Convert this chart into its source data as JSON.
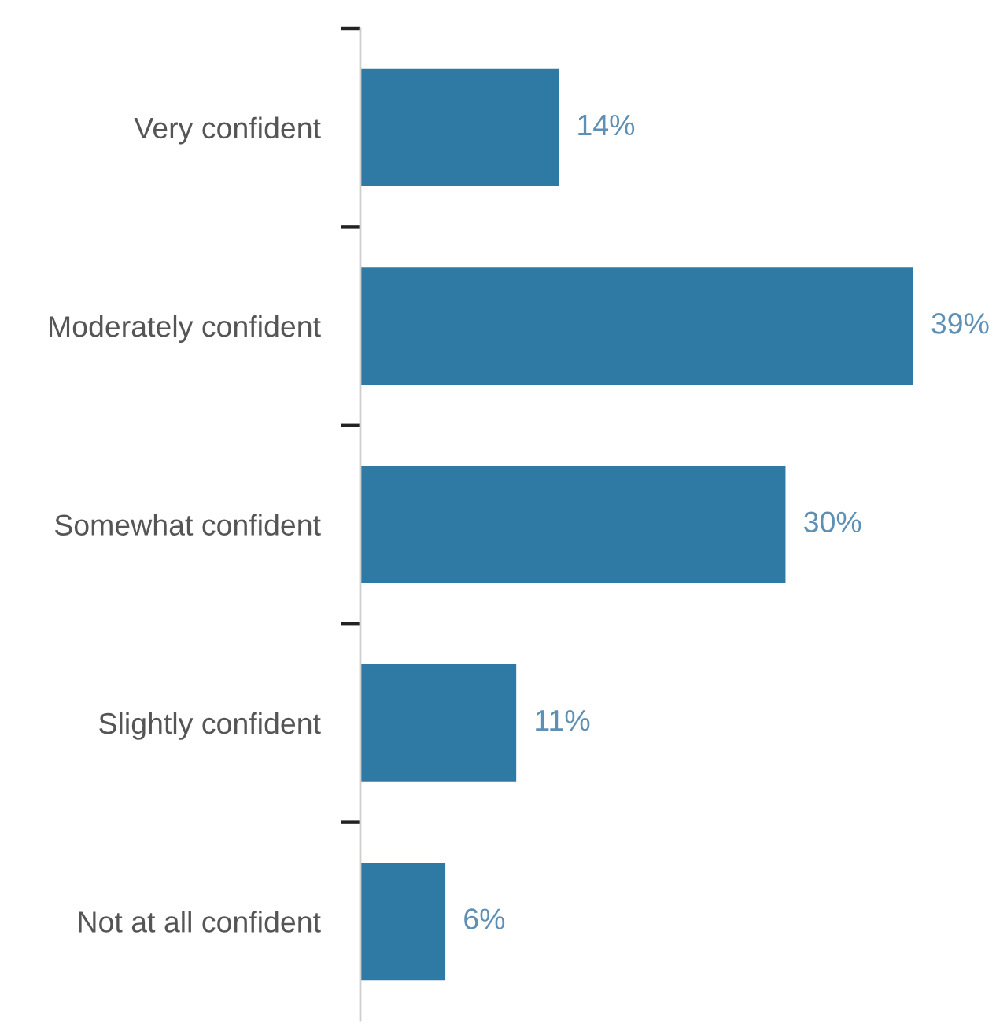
{
  "chart_data": {
    "type": "bar",
    "orientation": "horizontal",
    "categories": [
      "Very confident",
      "Moderately confident",
      "Somewhat confident",
      "Slightly confident",
      "Not at all confident"
    ],
    "values": [
      14,
      39,
      30,
      11,
      6
    ],
    "value_labels": [
      "14%",
      "39%",
      "30%",
      "11%",
      "6%"
    ],
    "color": "#2e7aa5"
  }
}
